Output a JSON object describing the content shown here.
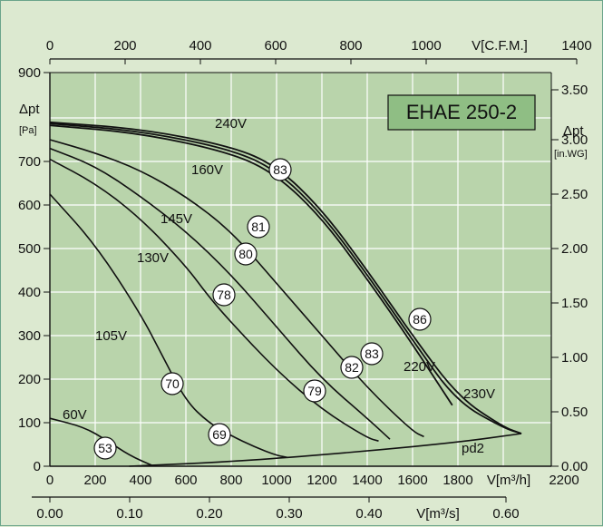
{
  "chart_data": {
    "type": "line",
    "title": "EHAE 250-2",
    "colors": {
      "background": "#dce9d0",
      "plot": "#b9d4ab",
      "grid": "#ffffff",
      "curve": "#111111",
      "title_box": "#8fbe84"
    },
    "axes": {
      "bottom_m3h": {
        "label": "V[m³/h]",
        "range": [
          0,
          2200
        ],
        "ticks": [
          "0",
          "200",
          "400",
          "600",
          "800",
          "1000",
          "1200",
          "1400",
          "1600",
          "1800",
          "2200"
        ]
      },
      "bottom_m3s": {
        "label": "V[m³/s]",
        "range": [
          0,
          0.61
        ],
        "ticks": [
          "0.00",
          "0.10",
          "0.20",
          "0.30",
          "0.40",
          "0.60"
        ]
      },
      "top_cfm": {
        "label": "V[C.F.M.]",
        "range": [
          0,
          1400
        ],
        "ticks": [
          "0",
          "200",
          "400",
          "600",
          "800",
          "1000",
          "1400"
        ]
      },
      "left_pa": {
        "label": "Δpt",
        "unit": "[Pa]",
        "range": [
          0,
          900
        ],
        "ticks": [
          "0",
          "100",
          "200",
          "300",
          "400",
          "500",
          "600",
          "700",
          "800",
          "900"
        ]
      },
      "right_inwg": {
        "label": "Δpt",
        "unit": "[in.WG]",
        "range": [
          0,
          3.6
        ],
        "ticks": [
          "0.00",
          "0.50",
          "1.00",
          "1.50",
          "2.00",
          "2.50",
          "3.00",
          "3.50"
        ]
      }
    },
    "grid": true,
    "series": [
      {
        "name": "240V",
        "points": [
          [
            0,
            790
          ],
          [
            400,
            775
          ],
          [
            800,
            735
          ],
          [
            1000,
            690
          ],
          [
            1200,
            590
          ],
          [
            1400,
            450
          ],
          [
            1600,
            300
          ],
          [
            1800,
            160
          ],
          [
            2000,
            90
          ],
          [
            2080,
            75
          ]
        ]
      },
      {
        "name": "230V",
        "points": [
          [
            0,
            787
          ],
          [
            400,
            770
          ],
          [
            800,
            728
          ],
          [
            1000,
            680
          ],
          [
            1200,
            580
          ],
          [
            1400,
            440
          ],
          [
            1600,
            290
          ],
          [
            1790,
            150
          ],
          [
            2000,
            88
          ],
          [
            2080,
            75
          ]
        ]
      },
      {
        "name": "220V",
        "points": [
          [
            0,
            783
          ],
          [
            400,
            765
          ],
          [
            800,
            720
          ],
          [
            1000,
            670
          ],
          [
            1200,
            570
          ],
          [
            1400,
            430
          ],
          [
            1600,
            280
          ],
          [
            1775,
            140
          ]
        ]
      },
      {
        "name": "160V",
        "points": [
          [
            0,
            750
          ],
          [
            200,
            720
          ],
          [
            400,
            680
          ],
          [
            600,
            620
          ],
          [
            800,
            540
          ],
          [
            1000,
            420
          ],
          [
            1200,
            300
          ],
          [
            1400,
            180
          ],
          [
            1600,
            80
          ],
          [
            1650,
            68
          ]
        ]
      },
      {
        "name": "145V",
        "points": [
          [
            0,
            730
          ],
          [
            200,
            690
          ],
          [
            400,
            620
          ],
          [
            600,
            540
          ],
          [
            800,
            440
          ],
          [
            1000,
            320
          ],
          [
            1200,
            200
          ],
          [
            1400,
            110
          ],
          [
            1500,
            62
          ]
        ]
      },
      {
        "name": "130V",
        "points": [
          [
            0,
            705
          ],
          [
            200,
            650
          ],
          [
            400,
            570
          ],
          [
            600,
            460
          ],
          [
            700,
            390
          ],
          [
            800,
            330
          ],
          [
            1000,
            220
          ],
          [
            1200,
            130
          ],
          [
            1400,
            65
          ],
          [
            1450,
            58
          ]
        ]
      },
      {
        "name": "105V",
        "points": [
          [
            0,
            625
          ],
          [
            200,
            510
          ],
          [
            400,
            350
          ],
          [
            500,
            250
          ],
          [
            600,
            150
          ],
          [
            700,
            100
          ],
          [
            800,
            70
          ],
          [
            900,
            45
          ],
          [
            1000,
            25
          ],
          [
            1050,
            20
          ]
        ]
      },
      {
        "name": "60V",
        "points": [
          [
            0,
            110
          ],
          [
            150,
            90
          ],
          [
            250,
            60
          ],
          [
            350,
            25
          ],
          [
            450,
            2
          ]
        ]
      },
      {
        "name": "pd2",
        "points": [
          [
            350,
            0
          ],
          [
            700,
            8
          ],
          [
            1000,
            18
          ],
          [
            1400,
            35
          ],
          [
            1800,
            55
          ],
          [
            2080,
            75
          ]
        ]
      }
    ],
    "curve_labels": [
      "240V",
      "230V",
      "220V",
      "160V",
      "145V",
      "130V",
      "105V",
      "60V",
      "pd2"
    ],
    "efficiency_markers": [
      "83",
      "81",
      "80",
      "78",
      "70",
      "69",
      "53",
      "86",
      "83",
      "82",
      "79"
    ]
  }
}
